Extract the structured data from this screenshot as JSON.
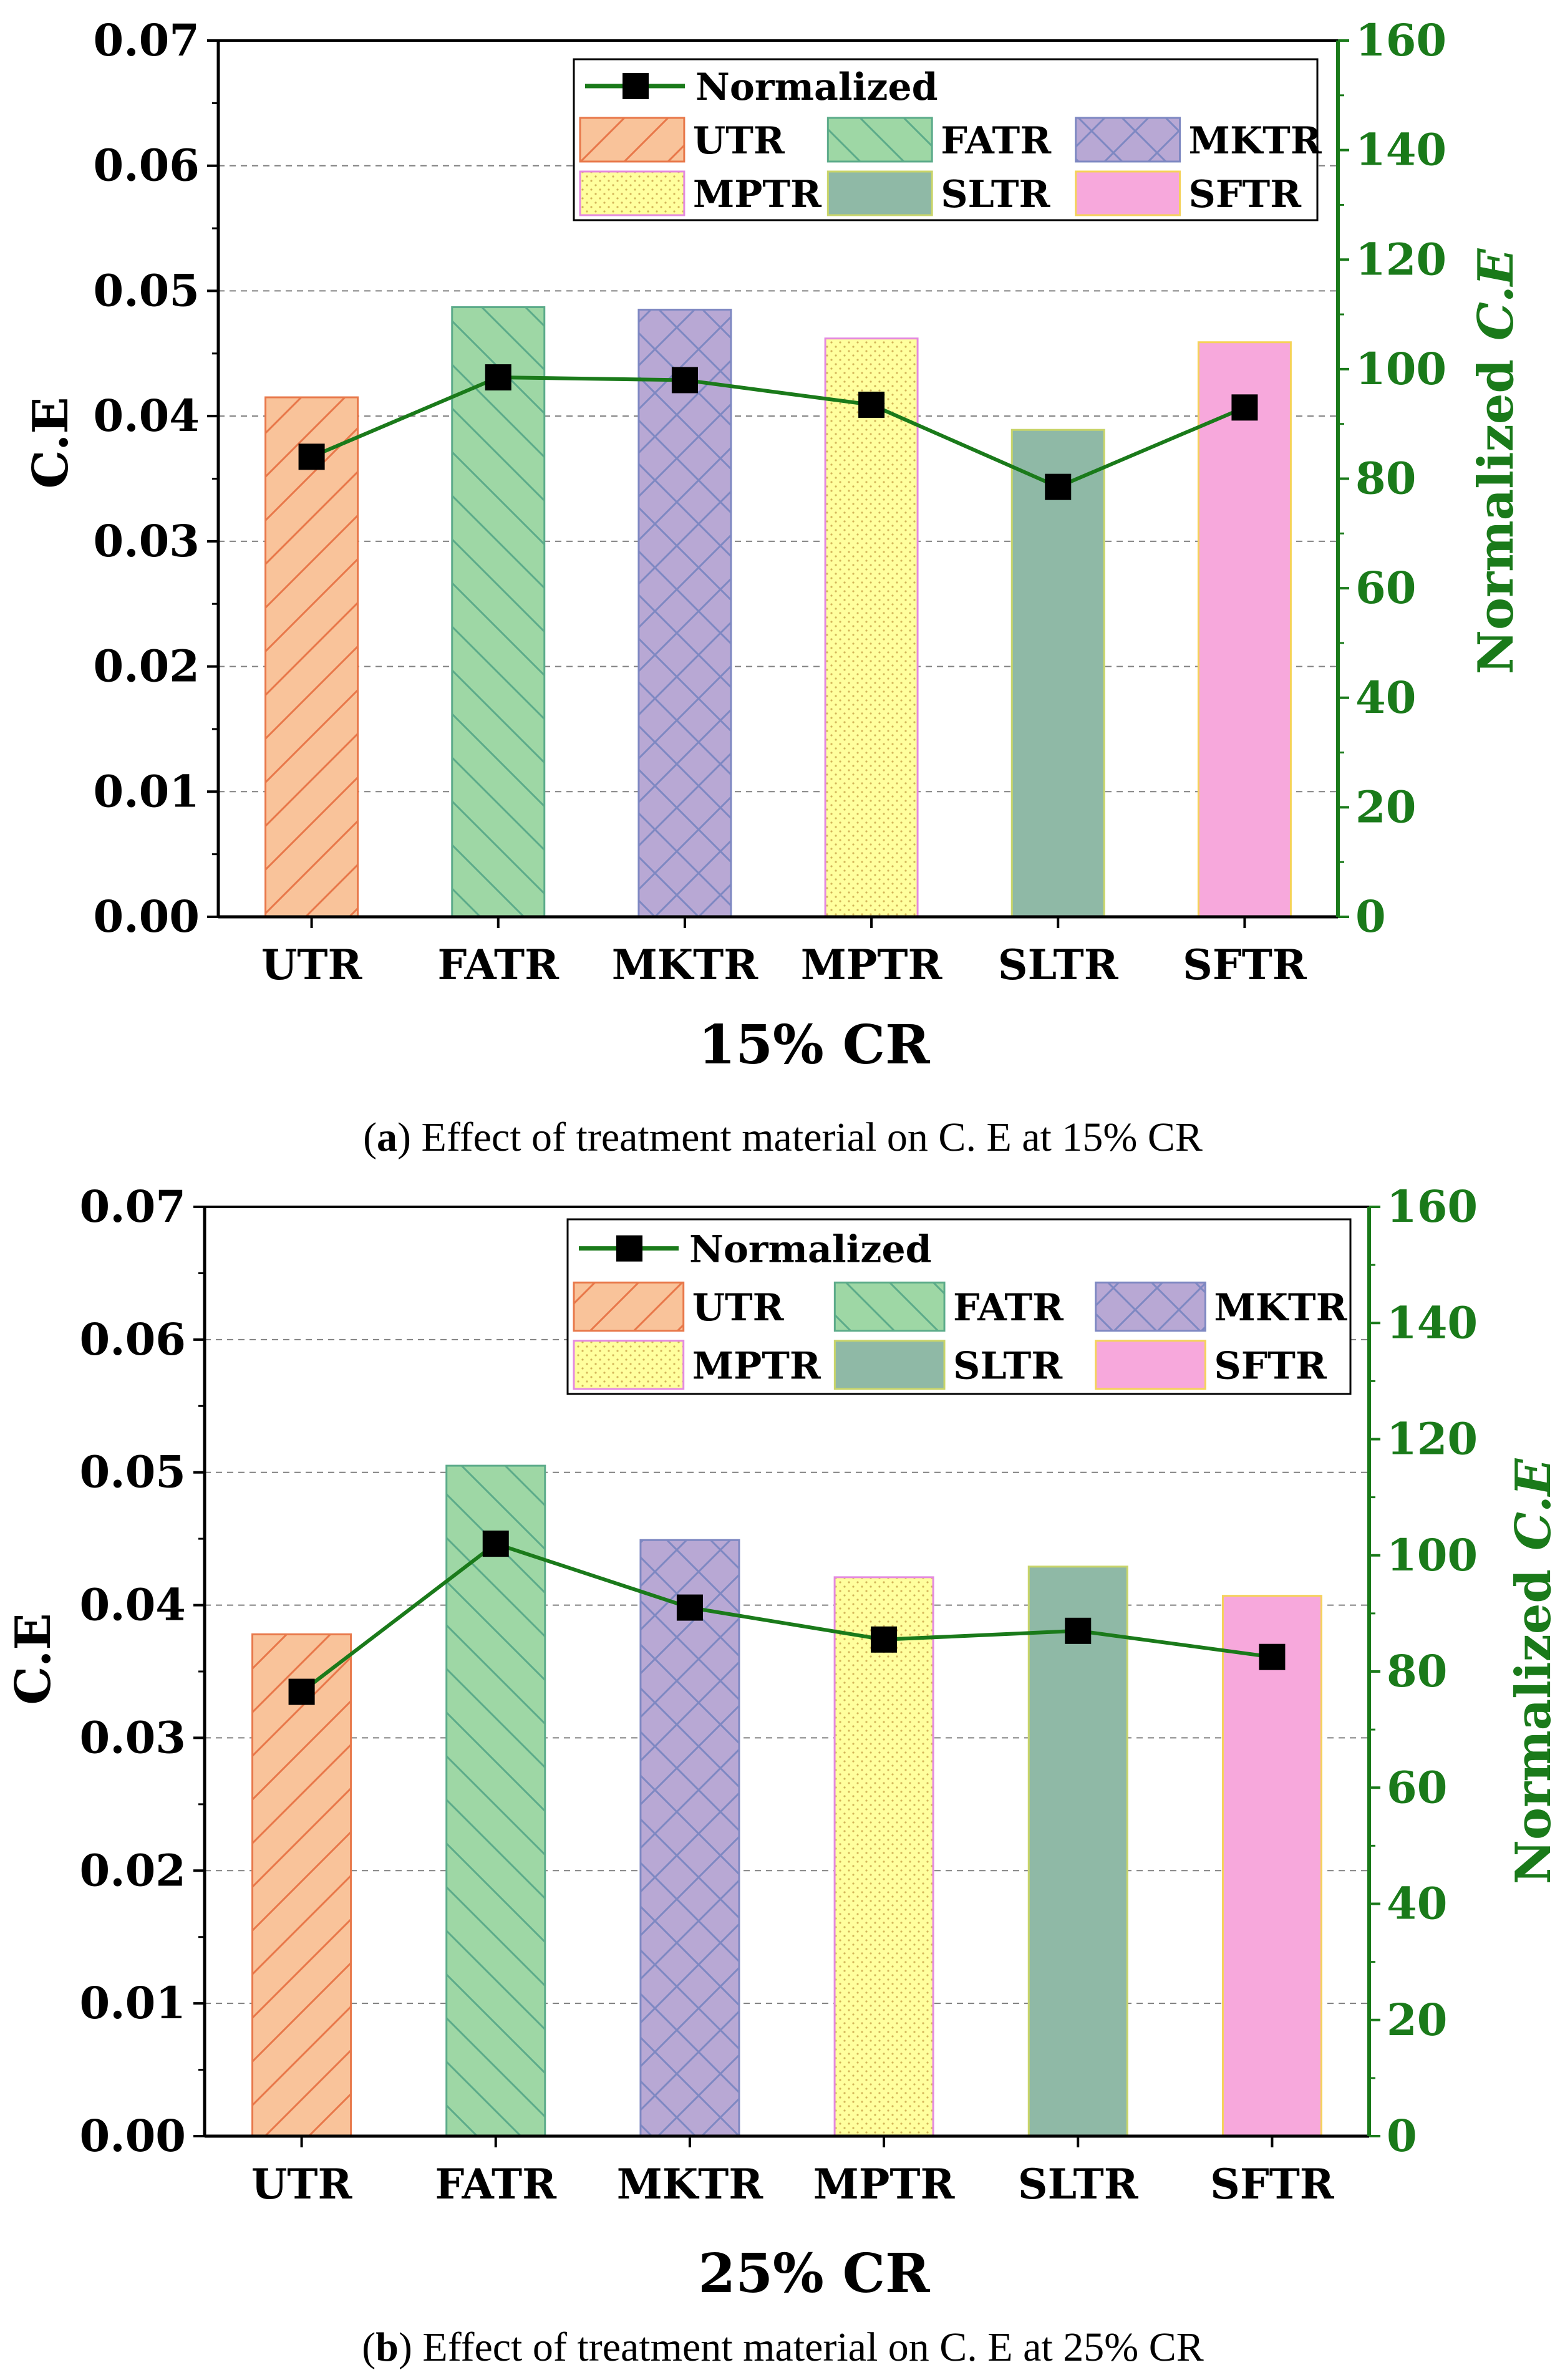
{
  "colors": {
    "axis": "#000000",
    "line": "#1a7a1a",
    "right_axis": "#1a7a1a",
    "grid": "#808080"
  },
  "legend": {
    "line_label": "Normalized",
    "items": [
      "UTR",
      "FATR",
      "MKTR",
      "MPTR",
      "SLTR",
      "SFTR"
    ]
  },
  "chart_data": [
    {
      "type": "bar",
      "panel": "a",
      "categories": [
        "UTR",
        "FATR",
        "MKTR",
        "MPTR",
        "SLTR",
        "SFTR"
      ],
      "series": [
        {
          "name": "C.E",
          "axis": "left",
          "values": [
            0.0415,
            0.0487,
            0.0485,
            0.0462,
            0.0389,
            0.0459
          ]
        },
        {
          "name": "Normalized",
          "axis": "right",
          "type": "line",
          "values": [
            84,
            98.5,
            98,
            93.5,
            78.5,
            93
          ]
        }
      ],
      "xlabel": "15% CR",
      "ylabel": "C.E",
      "y2label": "Normalized C.E",
      "ylim": [
        0,
        0.07
      ],
      "yticks": [
        "0.00",
        "0.01",
        "0.02",
        "0.03",
        "0.04",
        "0.05",
        "0.06",
        "0.07"
      ],
      "y2lim": [
        0,
        160
      ],
      "y2ticks": [
        "0",
        "20",
        "40",
        "60",
        "80",
        "100",
        "120",
        "140",
        "160"
      ],
      "grid": true,
      "legend_position": "top-right",
      "caption_label": "a",
      "caption_text": "Effect of treatment material on C. E at 15% CR"
    },
    {
      "type": "bar",
      "panel": "b",
      "categories": [
        "UTR",
        "FATR",
        "MKTR",
        "MPTR",
        "SLTR",
        "SFTR"
      ],
      "series": [
        {
          "name": "C.E",
          "axis": "left",
          "values": [
            0.0378,
            0.0505,
            0.0449,
            0.0421,
            0.0429,
            0.0407
          ]
        },
        {
          "name": "Normalized",
          "axis": "right",
          "type": "line",
          "values": [
            76.5,
            102,
            91,
            85.5,
            87,
            82.5
          ]
        }
      ],
      "xlabel": "25% CR",
      "ylabel": "C.E",
      "y2label": "Normalized C.E",
      "ylim": [
        0,
        0.07
      ],
      "yticks": [
        "0.00",
        "0.01",
        "0.02",
        "0.03",
        "0.04",
        "0.05",
        "0.06",
        "0.07"
      ],
      "y2lim": [
        0,
        160
      ],
      "y2ticks": [
        "0",
        "20",
        "40",
        "60",
        "80",
        "100",
        "120",
        "140",
        "160"
      ],
      "grid": true,
      "legend_position": "top-right",
      "caption_label": "b",
      "caption_text": "Effect of treatment material on C. E at 25% CR"
    }
  ]
}
